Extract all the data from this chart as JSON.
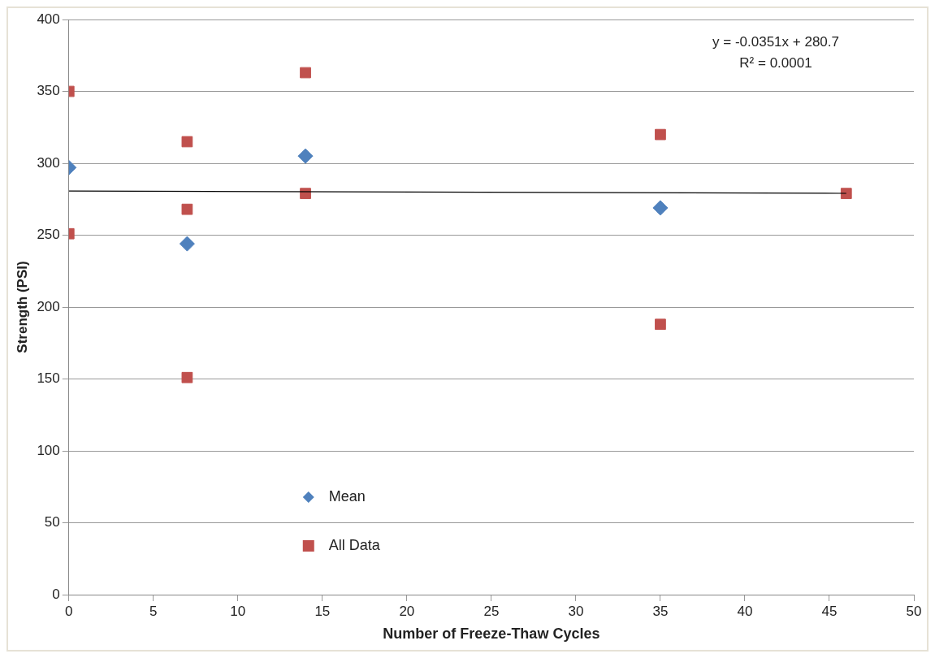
{
  "chart_data": {
    "type": "scatter",
    "xlabel": "Number of Freeze-Thaw Cycles",
    "ylabel": "Strength (PSI)",
    "xlim": [
      0,
      50
    ],
    "xticks": [
      0,
      5,
      10,
      15,
      20,
      25,
      30,
      35,
      40,
      45,
      50
    ],
    "ylim": [
      0,
      400
    ],
    "yticks": [
      0,
      50,
      100,
      150,
      200,
      250,
      300,
      350,
      400
    ],
    "grid": "y",
    "legend": "bottom left",
    "series": [
      {
        "name": "Mean",
        "color": "#4f81bd",
        "marker": "diamond",
        "x": [
          0,
          7,
          14,
          35
        ],
        "values": [
          297,
          244,
          305,
          269
        ]
      },
      {
        "name": "All Data",
        "color": "#c0504d",
        "marker": "square",
        "x": [
          0,
          0,
          7,
          7,
          7,
          14,
          14,
          35,
          35,
          46
        ],
        "values": [
          350,
          251,
          315,
          268,
          151,
          363,
          279,
          320,
          188,
          279
        ]
      },
      {
        "type": "line",
        "color": "#000000",
        "marker": "none",
        "x": [
          0,
          46
        ],
        "values": [
          280.7,
          279.1
        ]
      }
    ],
    "annotations": [
      "y = -0.0351x + 280.7",
      "R² = 0.0001"
    ]
  }
}
